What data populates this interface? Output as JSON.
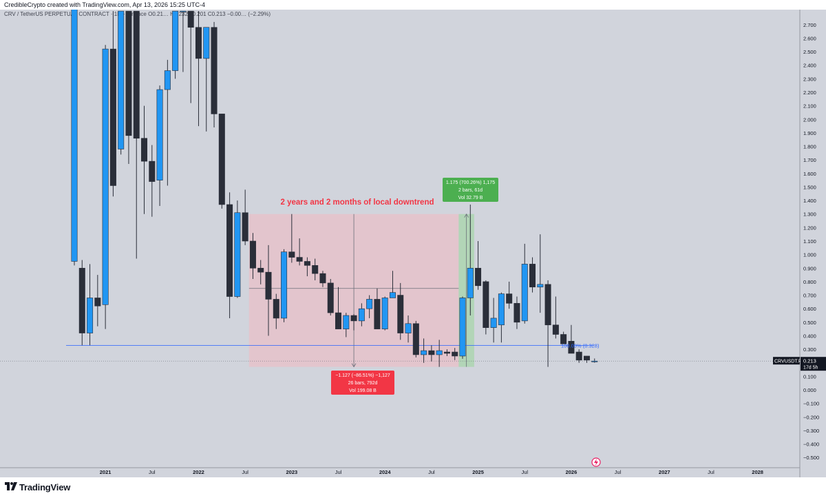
{
  "header": {
    "caption": "CredibleCrypto created with TradingView.com, Apr 13, 2026 15:25 UTC-4"
  },
  "footer": {
    "brand": "TradingView",
    "logo_icon": "tradingview-logo-icon"
  },
  "colors": {
    "background": "#d1d4dc",
    "bull": "#2196f3",
    "bear": "#2a2e39",
    "downtrend_zone": "#f2b8c1",
    "uptrend_zone": "#a5d6a7",
    "support_line": "#2962ff",
    "label_red": "#f23645",
    "label_green": "#4caf50",
    "annotation_text": "#f23645"
  },
  "chart_data": {
    "type": "candlestick",
    "symbol_line": "CRV / TetherUS PERPETUAL CONTRACT · 1M · Binance  O0.21…  H0.232  L0.201  C0.213  −0.00… (−2.29%)",
    "timeframe": "1M",
    "x_tick_labels": [
      "2021",
      "Jul",
      "2022",
      "Jul",
      "2023",
      "Jul",
      "2024",
      "Jul",
      "2025",
      "Jul",
      "2026",
      "Jul",
      "2027",
      "Jul",
      "2028"
    ],
    "y_tick_labels": [
      "2.700",
      "2.600",
      "2.500",
      "2.400",
      "2.300",
      "2.200",
      "2.100",
      "2.000",
      "1.900",
      "1.800",
      "1.700",
      "1.600",
      "1.500",
      "1.400",
      "1.300",
      "1.200",
      "1.100",
      "1.000",
      "0.900",
      "0.800",
      "0.700",
      "0.600",
      "0.500",
      "0.400",
      "0.300",
      "0.200",
      "0.100",
      "0.000",
      "−0.100",
      "−0.200",
      "−0.300",
      "−0.400",
      "−0.500"
    ],
    "ylim": [
      -0.56,
      2.76
    ],
    "candles": [
      {
        "t": "2020-09",
        "o": 0.95,
        "h": 2.9,
        "l": 0.92,
        "c": 2.9
      },
      {
        "t": "2020-10",
        "o": 0.9,
        "h": 0.96,
        "l": 0.33,
        "c": 0.42
      },
      {
        "t": "2020-11",
        "o": 0.42,
        "h": 0.93,
        "l": 0.33,
        "c": 0.68
      },
      {
        "t": "2020-12",
        "o": 0.68,
        "h": 0.85,
        "l": 0.47,
        "c": 0.62
      },
      {
        "t": "2021-01",
        "o": 0.63,
        "h": 2.55,
        "l": 0.45,
        "c": 2.52
      },
      {
        "t": "2021-02",
        "o": 2.52,
        "h": 2.8,
        "l": 1.43,
        "c": 1.51
      },
      {
        "t": "2021-03",
        "o": 1.78,
        "h": 2.8,
        "l": 1.74,
        "c": 2.8
      },
      {
        "t": "2021-04",
        "o": 2.8,
        "h": 2.8,
        "l": 1.67,
        "c": 1.88
      },
      {
        "t": "2021-05",
        "o": 2.8,
        "h": 2.8,
        "l": 0.97,
        "c": 1.86
      },
      {
        "t": "2021-06",
        "o": 1.86,
        "h": 2.1,
        "l": 1.3,
        "c": 1.69
      },
      {
        "t": "2021-07",
        "o": 1.69,
        "h": 1.81,
        "l": 1.28,
        "c": 1.54
      },
      {
        "t": "2021-08",
        "o": 1.55,
        "h": 2.25,
        "l": 1.36,
        "c": 2.22
      },
      {
        "t": "2021-09",
        "o": 2.22,
        "h": 2.44,
        "l": 1.51,
        "c": 2.36
      },
      {
        "t": "2021-10",
        "o": 2.36,
        "h": 2.8,
        "l": 2.3,
        "c": 2.8
      },
      {
        "t": "2021-11",
        "o": 2.8,
        "h": 2.8,
        "l": 2.35,
        "c": 2.8
      },
      {
        "t": "2021-12",
        "o": 2.8,
        "h": 2.8,
        "l": 2.12,
        "c": 2.68
      },
      {
        "t": "2022-01",
        "o": 2.68,
        "h": 2.8,
        "l": 1.95,
        "c": 2.45
      },
      {
        "t": "2022-02",
        "o": 2.45,
        "h": 2.68,
        "l": 1.91,
        "c": 2.68
      },
      {
        "t": "2022-03",
        "o": 2.68,
        "h": 2.72,
        "l": 1.94,
        "c": 2.04
      },
      {
        "t": "2022-04",
        "o": 2.04,
        "h": 2.04,
        "l": 1.34,
        "c": 1.37
      },
      {
        "t": "2022-05",
        "o": 1.37,
        "h": 1.46,
        "l": 0.53,
        "c": 0.69
      },
      {
        "t": "2022-06",
        "o": 0.69,
        "h": 1.4,
        "l": 0.68,
        "c": 1.31
      },
      {
        "t": "2022-07",
        "o": 1.31,
        "h": 1.48,
        "l": 1.07,
        "c": 1.1
      },
      {
        "t": "2022-08",
        "o": 1.1,
        "h": 1.16,
        "l": 0.82,
        "c": 0.9
      },
      {
        "t": "2022-09",
        "o": 0.9,
        "h": 0.96,
        "l": 0.78,
        "c": 0.87
      },
      {
        "t": "2022-10",
        "o": 0.87,
        "h": 1.07,
        "l": 0.4,
        "c": 0.67
      },
      {
        "t": "2022-11",
        "o": 0.67,
        "h": 0.71,
        "l": 0.45,
        "c": 0.53
      },
      {
        "t": "2022-12",
        "o": 0.53,
        "h": 1.04,
        "l": 0.5,
        "c": 1.02
      },
      {
        "t": "2023-01",
        "o": 1.02,
        "h": 1.3,
        "l": 0.94,
        "c": 0.98
      },
      {
        "t": "2023-02",
        "o": 0.98,
        "h": 1.12,
        "l": 0.92,
        "c": 0.95
      },
      {
        "t": "2023-03",
        "o": 0.95,
        "h": 0.98,
        "l": 0.84,
        "c": 0.92
      },
      {
        "t": "2023-04",
        "o": 0.92,
        "h": 0.97,
        "l": 0.81,
        "c": 0.86
      },
      {
        "t": "2023-05",
        "o": 0.86,
        "h": 0.88,
        "l": 0.76,
        "c": 0.79
      },
      {
        "t": "2023-06",
        "o": 0.79,
        "h": 0.82,
        "l": 0.55,
        "c": 0.57
      },
      {
        "t": "2023-07",
        "o": 0.57,
        "h": 0.76,
        "l": 0.45,
        "c": 0.45
      },
      {
        "t": "2023-08",
        "o": 0.45,
        "h": 0.57,
        "l": 0.39,
        "c": 0.55
      },
      {
        "t": "2023-09",
        "o": 0.55,
        "h": 0.56,
        "l": 0.44,
        "c": 0.51
      },
      {
        "t": "2023-10",
        "o": 0.51,
        "h": 0.64,
        "l": 0.47,
        "c": 0.6
      },
      {
        "t": "2023-11",
        "o": 0.6,
        "h": 0.7,
        "l": 0.53,
        "c": 0.67
      },
      {
        "t": "2023-12",
        "o": 0.67,
        "h": 0.75,
        "l": 0.45,
        "c": 0.45
      },
      {
        "t": "2024-01",
        "o": 0.45,
        "h": 0.69,
        "l": 0.44,
        "c": 0.68
      },
      {
        "t": "2024-02",
        "o": 0.68,
        "h": 0.88,
        "l": 0.68,
        "c": 0.72
      },
      {
        "t": "2024-03",
        "o": 0.7,
        "h": 0.79,
        "l": 0.37,
        "c": 0.42
      },
      {
        "t": "2024-04",
        "o": 0.42,
        "h": 0.55,
        "l": 0.35,
        "c": 0.49
      },
      {
        "t": "2024-05",
        "o": 0.49,
        "h": 0.51,
        "l": 0.24,
        "c": 0.26
      },
      {
        "t": "2024-06",
        "o": 0.26,
        "h": 0.38,
        "l": 0.2,
        "c": 0.29
      },
      {
        "t": "2024-07",
        "o": 0.29,
        "h": 0.33,
        "l": 0.21,
        "c": 0.26
      },
      {
        "t": "2024-08",
        "o": 0.26,
        "h": 0.37,
        "l": 0.17,
        "c": 0.29
      },
      {
        "t": "2024-09",
        "o": 0.28,
        "h": 0.3,
        "l": 0.25,
        "c": 0.27
      },
      {
        "t": "2024-10",
        "o": 0.28,
        "h": 0.31,
        "l": 0.22,
        "c": 0.25
      },
      {
        "t": "2024-11",
        "o": 0.25,
        "h": 0.69,
        "l": 0.23,
        "c": 0.68
      },
      {
        "t": "2024-12",
        "o": 0.68,
        "h": 1.37,
        "l": 0.55,
        "c": 0.9
      },
      {
        "t": "2025-01",
        "o": 0.9,
        "h": 1.1,
        "l": 0.74,
        "c": 0.77
      },
      {
        "t": "2025-02",
        "o": 0.8,
        "h": 0.81,
        "l": 0.41,
        "c": 0.46
      },
      {
        "t": "2025-03",
        "o": 0.46,
        "h": 0.68,
        "l": 0.35,
        "c": 0.53
      },
      {
        "t": "2025-04",
        "o": 0.48,
        "h": 0.72,
        "l": 0.35,
        "c": 0.71
      },
      {
        "t": "2025-05",
        "o": 0.71,
        "h": 0.8,
        "l": 0.6,
        "c": 0.64
      },
      {
        "t": "2025-06",
        "o": 0.64,
        "h": 0.69,
        "l": 0.45,
        "c": 0.5
      },
      {
        "t": "2025-07",
        "o": 0.51,
        "h": 1.08,
        "l": 0.49,
        "c": 0.93
      },
      {
        "t": "2025-08",
        "o": 0.93,
        "h": 0.98,
        "l": 0.72,
        "c": 0.76
      },
      {
        "t": "2025-09",
        "o": 0.76,
        "h": 1.15,
        "l": 0.57,
        "c": 0.78
      },
      {
        "t": "2025-10",
        "o": 0.78,
        "h": 0.81,
        "l": 0.17,
        "c": 0.48
      },
      {
        "t": "2025-11",
        "o": 0.48,
        "h": 0.69,
        "l": 0.38,
        "c": 0.41
      },
      {
        "t": "2025-12",
        "o": 0.41,
        "h": 0.43,
        "l": 0.34,
        "c": 0.34
      },
      {
        "t": "2026-01",
        "o": 0.36,
        "h": 0.48,
        "l": 0.27,
        "c": 0.27
      },
      {
        "t": "2026-02",
        "o": 0.28,
        "h": 0.3,
        "l": 0.2,
        "c": 0.22
      },
      {
        "t": "2026-03",
        "o": 0.25,
        "h": 0.25,
        "l": 0.2,
        "c": 0.22
      },
      {
        "t": "2026-04",
        "o": 0.21,
        "h": 0.232,
        "l": 0.201,
        "c": 0.213
      }
    ],
    "support_line_value": 0.328,
    "support_label": "100.00% (0.328)",
    "current_price": {
      "symbol": "CRVUSDT.P",
      "value": "0.213",
      "countdown": "17d 5h"
    },
    "annotation": "2 years and 2 months of local downtrend",
    "downtrend_measure": {
      "from": "2022-08",
      "to": "2024-10",
      "top": 1.3,
      "bottom": 0.17,
      "label_lines": [
        "−1.127 (−86.51%) −1,127",
        "26 bars, 792d",
        "Vol 199.08 B"
      ]
    },
    "uptrend_measure": {
      "from": "2024-10",
      "to": "2024-12",
      "top": 1.3,
      "bottom": 0.17,
      "label_lines": [
        "1.175 (700.26%) 1,175",
        "2 bars, 61d",
        "Vol 32.79 B"
      ]
    },
    "grid": false,
    "legend": "none"
  }
}
